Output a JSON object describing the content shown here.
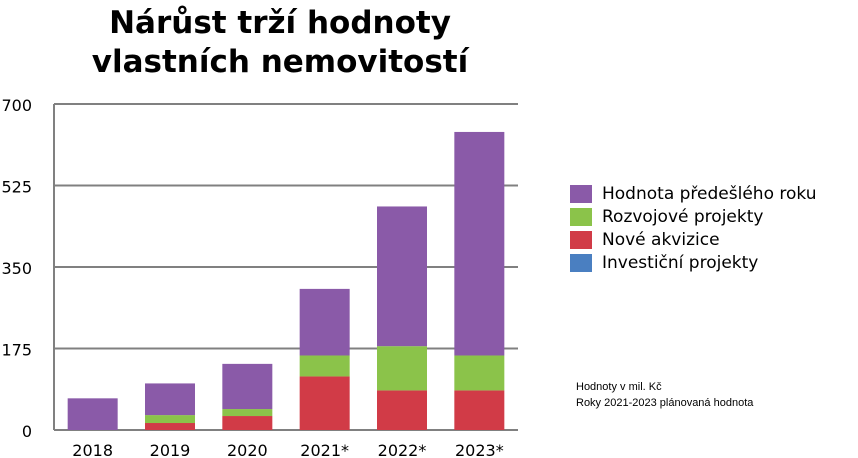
{
  "title": {
    "line1": "Nárůst trží hodnoty",
    "line2": "vlastních nemovitostí"
  },
  "chart_data": {
    "type": "bar",
    "stacked": true,
    "categories": [
      "2018",
      "2019",
      "2020",
      "2021*",
      "2022*",
      "2023*"
    ],
    "series": [
      {
        "name": "Investiční projekty",
        "color": "#4a7fc1",
        "values": [
          0,
          0,
          0,
          0,
          0,
          0
        ]
      },
      {
        "name": "Nové akvizice",
        "color": "#d13b47",
        "values": [
          0,
          15,
          30,
          115,
          85,
          85
        ]
      },
      {
        "name": "Rozvojové projekty",
        "color": "#8bc34a",
        "values": [
          0,
          17,
          15,
          45,
          95,
          75
        ]
      },
      {
        "name": "Hodnota předešlého roku",
        "color": "#8a5aa8",
        "values": [
          68,
          68,
          97,
          143,
          300,
          480
        ]
      }
    ],
    "yticks": [
      "0",
      "175",
      "350",
      "525",
      "700"
    ],
    "ylim": [
      0,
      700
    ],
    "grid": true,
    "legend_position": "right"
  },
  "legend": {
    "items": [
      {
        "label": "Hodnota předešlého roku",
        "color": "#8a5aa8"
      },
      {
        "label": "Rozvojové projekty",
        "color": "#8bc34a"
      },
      {
        "label": "Nové akvizice",
        "color": "#d13b47"
      },
      {
        "label": "Investiční projekty",
        "color": "#4a7fc1"
      }
    ]
  },
  "notes": {
    "line1": "Hodnoty v mil. Kč",
    "line2": "Roky 2021-2023 plánovaná hodnota"
  }
}
